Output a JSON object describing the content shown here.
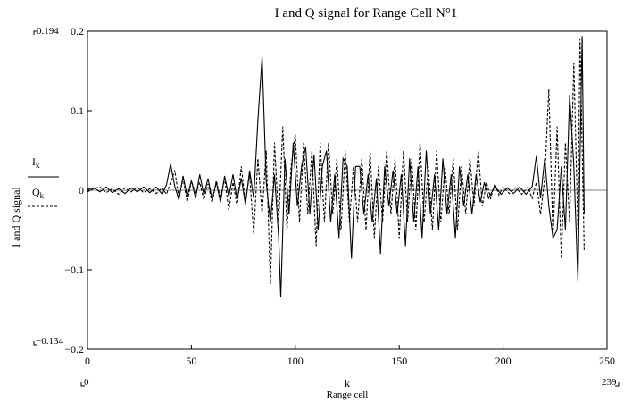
{
  "chart_data": {
    "type": "line",
    "title": "I and Q signal for Range Cell N°1",
    "ylabel": "I and Q signal",
    "xlabel": "k",
    "xlabel_sub": "Range cell",
    "xlim": [
      0,
      250
    ],
    "ylim": [
      -0.2,
      0.2
    ],
    "x_ticks": [
      0,
      50,
      100,
      150,
      200,
      250
    ],
    "y_ticks": [
      -0.2,
      -0.1,
      0,
      0.1,
      0.2
    ],
    "y_tick_labels": [
      "−0.2",
      "−0.1",
      "0",
      "0.1",
      "0.2"
    ],
    "range_markers": {
      "y_max": "0.194",
      "y_min": "−0.134",
      "x_min": "0",
      "x_max": "239"
    },
    "legend": {
      "placement": "left",
      "entries": [
        {
          "base": "I",
          "sub": "k",
          "style": "solid"
        },
        {
          "base": "Q",
          "sub": "k",
          "style": "dashed"
        }
      ]
    },
    "series": [
      {
        "name": "I",
        "style": "solid",
        "points": [
          [
            0,
            0.001
          ],
          [
            3,
            0.003
          ],
          [
            6,
            -0.002
          ],
          [
            9,
            0.004
          ],
          [
            12,
            -0.003
          ],
          [
            15,
            0.002
          ],
          [
            18,
            -0.004
          ],
          [
            21,
            0.003
          ],
          [
            24,
            -0.002
          ],
          [
            27,
            0.004
          ],
          [
            30,
            -0.003
          ],
          [
            33,
            0.004
          ],
          [
            36,
            -0.005
          ],
          [
            38,
            0.007
          ],
          [
            40,
            0.033
          ],
          [
            42,
            0.005
          ],
          [
            44,
            -0.012
          ],
          [
            46,
            0.018
          ],
          [
            48,
            -0.008
          ],
          [
            50,
            0.012
          ],
          [
            52,
            -0.01
          ],
          [
            54,
            0.02
          ],
          [
            56,
            -0.006
          ],
          [
            58,
            0.015
          ],
          [
            60,
            -0.012
          ],
          [
            62,
            0.01
          ],
          [
            64,
            -0.015
          ],
          [
            66,
            0.018
          ],
          [
            68,
            -0.008
          ],
          [
            70,
            0.02
          ],
          [
            72,
            -0.012
          ],
          [
            74,
            0.015
          ],
          [
            76,
            -0.018
          ],
          [
            78,
            0.025
          ],
          [
            80,
            -0.01
          ],
          [
            82,
            0.088
          ],
          [
            84,
            0.168
          ],
          [
            86,
            0.01
          ],
          [
            88,
            -0.04
          ],
          [
            90,
            0.02
          ],
          [
            92,
            -0.06
          ],
          [
            93,
            -0.135
          ],
          [
            95,
            0.04
          ],
          [
            97,
            -0.03
          ],
          [
            99,
            0.06
          ],
          [
            101,
            -0.02
          ],
          [
            103,
            0.03
          ],
          [
            105,
            0.055
          ],
          [
            107,
            -0.03
          ],
          [
            109,
            0.045
          ],
          [
            111,
            -0.05
          ],
          [
            113,
            0.03
          ],
          [
            115,
            0.05
          ],
          [
            117,
            -0.04
          ],
          [
            119,
            0.02
          ],
          [
            121,
            -0.06
          ],
          [
            123,
            0.04
          ],
          [
            125,
            0.03
          ],
          [
            127,
            -0.086
          ],
          [
            129,
            0.03
          ],
          [
            131,
            0.03
          ],
          [
            133,
            -0.03
          ],
          [
            135,
            0.02
          ],
          [
            137,
            -0.04
          ],
          [
            139,
            0.015
          ],
          [
            141,
            -0.08
          ],
          [
            143,
            0.03
          ],
          [
            145,
            -0.02
          ],
          [
            147,
            0.025
          ],
          [
            149,
            -0.03
          ],
          [
            151,
            0.02
          ],
          [
            153,
            -0.07
          ],
          [
            155,
            0.04
          ],
          [
            157,
            -0.04
          ],
          [
            159,
            0.03
          ],
          [
            161,
            -0.06
          ],
          [
            163,
            0.05
          ],
          [
            165,
            -0.03
          ],
          [
            167,
            0.02
          ],
          [
            169,
            -0.05
          ],
          [
            171,
            0.04
          ],
          [
            173,
            -0.03
          ],
          [
            175,
            0.02
          ],
          [
            177,
            -0.06
          ],
          [
            179,
            0.03
          ],
          [
            181,
            -0.02
          ],
          [
            183,
            0.02
          ],
          [
            185,
            -0.03
          ],
          [
            187,
            0.02
          ],
          [
            189,
            -0.015
          ],
          [
            191,
            0.01
          ],
          [
            193,
            -0.01
          ],
          [
            196,
            0.005
          ],
          [
            199,
            -0.005
          ],
          [
            202,
            0.003
          ],
          [
            205,
            -0.004
          ],
          [
            208,
            0.004
          ],
          [
            211,
            -0.005
          ],
          [
            214,
            0.005
          ],
          [
            216,
            0.043
          ],
          [
            218,
            -0.01
          ],
          [
            220,
            0.04
          ],
          [
            222,
            -0.02
          ],
          [
            224,
            -0.06
          ],
          [
            226,
            -0.05
          ],
          [
            228,
            0.03
          ],
          [
            230,
            -0.05
          ],
          [
            232,
            0.12
          ],
          [
            234,
            0.03
          ],
          [
            236,
            -0.114
          ],
          [
            238,
            0.194
          ],
          [
            239,
            -0.03
          ]
        ]
      },
      {
        "name": "Q",
        "style": "dashed",
        "points": [
          [
            0,
            -0.002
          ],
          [
            3,
            0.002
          ],
          [
            6,
            0.004
          ],
          [
            9,
            -0.003
          ],
          [
            12,
            0.002
          ],
          [
            15,
            -0.005
          ],
          [
            18,
            0.003
          ],
          [
            21,
            -0.002
          ],
          [
            24,
            0.004
          ],
          [
            27,
            -0.003
          ],
          [
            30,
            0.002
          ],
          [
            33,
            -0.004
          ],
          [
            36,
            0.003
          ],
          [
            38,
            -0.005
          ],
          [
            40,
            0.01
          ],
          [
            42,
            0.025
          ],
          [
            44,
            -0.01
          ],
          [
            46,
            0.015
          ],
          [
            48,
            -0.015
          ],
          [
            50,
            0.012
          ],
          [
            52,
            -0.005
          ],
          [
            54,
            0.01
          ],
          [
            56,
            -0.012
          ],
          [
            58,
            0.008
          ],
          [
            60,
            -0.016
          ],
          [
            62,
            0.012
          ],
          [
            64,
            -0.01
          ],
          [
            66,
            0.015
          ],
          [
            68,
            -0.025
          ],
          [
            70,
            0.01
          ],
          [
            72,
            -0.02
          ],
          [
            74,
            0.03
          ],
          [
            76,
            -0.015
          ],
          [
            78,
            0.02
          ],
          [
            80,
            -0.055
          ],
          [
            82,
            0.04
          ],
          [
            84,
            -0.03
          ],
          [
            86,
            0.05
          ],
          [
            88,
            -0.118
          ],
          [
            90,
            0.06
          ],
          [
            92,
            -0.04
          ],
          [
            94,
            0.08
          ],
          [
            96,
            -0.05
          ],
          [
            98,
            0.03
          ],
          [
            100,
            0.07
          ],
          [
            102,
            -0.04
          ],
          [
            104,
            0.06
          ],
          [
            106,
            -0.03
          ],
          [
            108,
            0.05
          ],
          [
            110,
            -0.07
          ],
          [
            112,
            0.06
          ],
          [
            114,
            -0.04
          ],
          [
            116,
            0.06
          ],
          [
            118,
            -0.03
          ],
          [
            120,
            0.04
          ],
          [
            122,
            -0.05
          ],
          [
            124,
            0.05
          ],
          [
            126,
            -0.04
          ],
          [
            128,
            0.03
          ],
          [
            130,
            -0.04
          ],
          [
            132,
            0.04
          ],
          [
            134,
            -0.05
          ],
          [
            136,
            0.05
          ],
          [
            138,
            -0.06
          ],
          [
            140,
            0.03
          ],
          [
            142,
            -0.04
          ],
          [
            144,
            0.05
          ],
          [
            146,
            -0.03
          ],
          [
            148,
            0.04
          ],
          [
            150,
            -0.06
          ],
          [
            152,
            0.05
          ],
          [
            154,
            -0.04
          ],
          [
            156,
            0.04
          ],
          [
            158,
            -0.05
          ],
          [
            160,
            0.06
          ],
          [
            162,
            -0.04
          ],
          [
            164,
            0.03
          ],
          [
            166,
            -0.05
          ],
          [
            168,
            0.05
          ],
          [
            170,
            -0.04
          ],
          [
            172,
            0.03
          ],
          [
            174,
            -0.03
          ],
          [
            176,
            0.04
          ],
          [
            178,
            -0.05
          ],
          [
            180,
            0.03
          ],
          [
            182,
            -0.03
          ],
          [
            184,
            0.04
          ],
          [
            186,
            -0.02
          ],
          [
            188,
            0.05
          ],
          [
            190,
            -0.02
          ],
          [
            192,
            0.01
          ],
          [
            194,
            -0.01
          ],
          [
            196,
            0.008
          ],
          [
            198,
            -0.006
          ],
          [
            200,
            0.004
          ],
          [
            203,
            -0.004
          ],
          [
            206,
            0.003
          ],
          [
            209,
            -0.005
          ],
          [
            212,
            0.004
          ],
          [
            214,
            -0.01
          ],
          [
            216,
            0.01
          ],
          [
            218,
            -0.03
          ],
          [
            220,
            0.015
          ],
          [
            222,
            0.127
          ],
          [
            224,
            -0.06
          ],
          [
            226,
            0.08
          ],
          [
            228,
            -0.086
          ],
          [
            230,
            0.06
          ],
          [
            232,
            -0.04
          ],
          [
            234,
            0.16
          ],
          [
            236,
            -0.05
          ],
          [
            237,
            0.19
          ],
          [
            239,
            -0.075
          ]
        ]
      }
    ]
  }
}
